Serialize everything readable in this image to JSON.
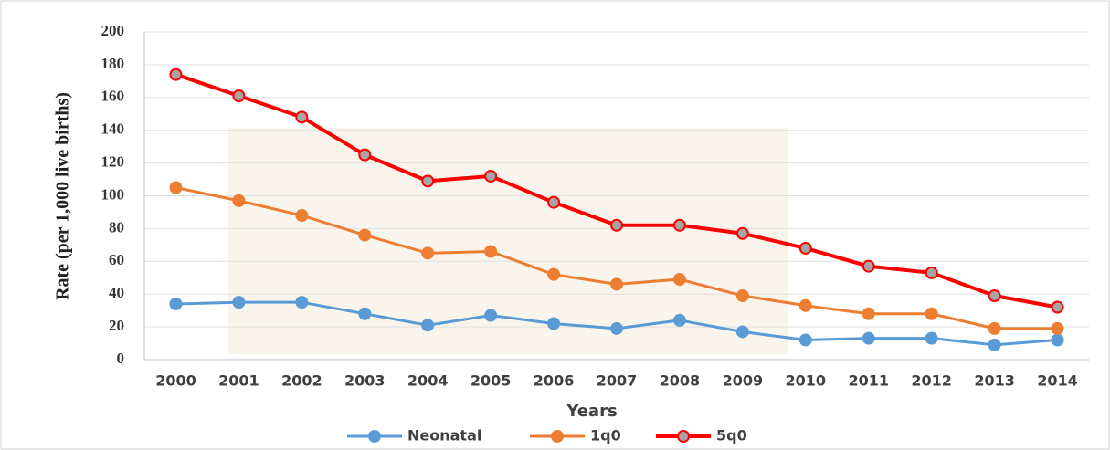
{
  "chart_data": {
    "type": "line",
    "x_label": "Years",
    "y_label": "Rate (per 1,000 live births)",
    "categories": [
      "2000",
      "2001",
      "2002",
      "2003",
      "2004",
      "2005",
      "2006",
      "2007",
      "2008",
      "2009",
      "2010",
      "2011",
      "2012",
      "2013",
      "2014"
    ],
    "series": [
      {
        "name": "Neonatal",
        "color": "#5b9bd5",
        "marker_color": "#5b9bd5",
        "values": [
          34,
          35,
          35,
          28,
          21,
          27,
          22,
          19,
          24,
          17,
          12,
          13,
          13,
          9,
          12
        ]
      },
      {
        "name": "1q0",
        "color": "#ed7d31",
        "marker_color": "#ed7d31",
        "values": [
          105,
          97,
          88,
          76,
          65,
          66,
          52,
          46,
          49,
          39,
          33,
          28,
          28,
          19,
          19
        ]
      },
      {
        "name": "5q0",
        "color": "#ff0000",
        "marker_color": "#a5a5a5",
        "values": [
          174,
          161,
          148,
          125,
          109,
          112,
          96,
          82,
          82,
          77,
          68,
          57,
          53,
          39,
          32
        ]
      }
    ],
    "ylim": [
      0,
      200
    ],
    "yticks": [
      0,
      20,
      40,
      60,
      80,
      100,
      120,
      140,
      160,
      180,
      200
    ],
    "grid": true,
    "legend": "bottom"
  }
}
